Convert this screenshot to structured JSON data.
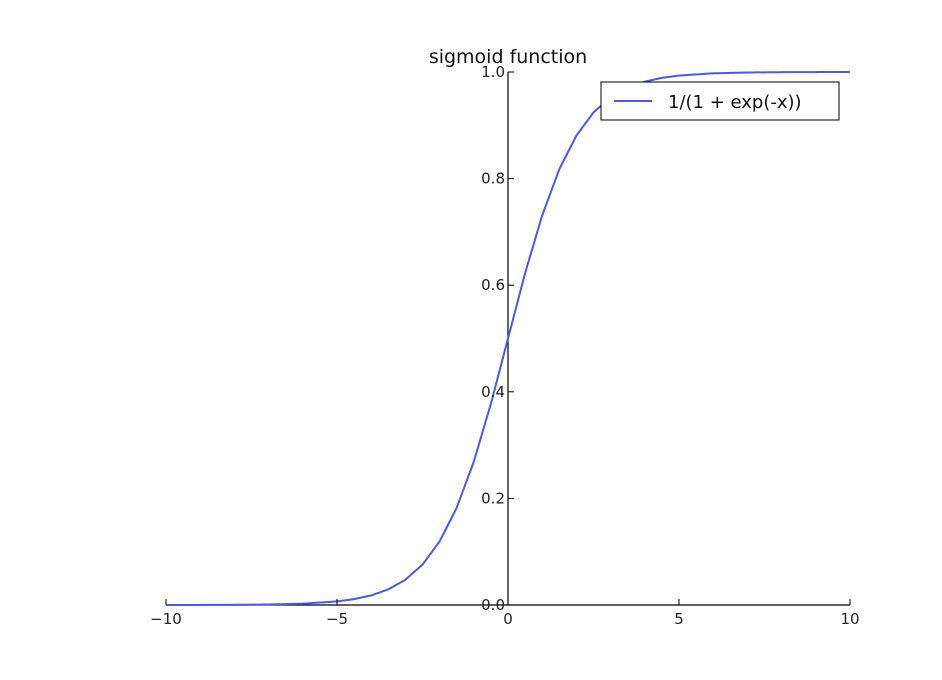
{
  "chart_data": {
    "type": "line",
    "title": "sigmoid function",
    "xlabel": "",
    "ylabel": "",
    "xlim": [
      -10,
      10
    ],
    "ylim": [
      0,
      1
    ],
    "xticks": [
      -10,
      -5,
      0,
      5,
      10
    ],
    "xtick_labels": [
      "−10",
      "−5",
      "0",
      "5",
      "10"
    ],
    "yticks": [
      0,
      0.2,
      0.4,
      0.6,
      0.8,
      1.0
    ],
    "ytick_labels": [
      "0.0",
      "0.2",
      "0.4",
      "0.6",
      "0.8",
      "1.0"
    ],
    "grid": false,
    "legend_position": "top-right",
    "series": [
      {
        "name": "1/(1 + exp(-x))",
        "color": "#4b57f5",
        "x": [
          -10,
          -9,
          -8,
          -7,
          -6,
          -5,
          -4.5,
          -4,
          -3.5,
          -3,
          -2.5,
          -2,
          -1.5,
          -1,
          -0.5,
          0,
          0.5,
          1,
          1.5,
          2,
          2.5,
          3,
          3.5,
          4,
          4.5,
          5,
          6,
          7,
          8,
          9,
          10
        ],
        "y": [
          4.54e-05,
          0.0001234,
          0.0003354,
          0.0009111,
          0.0024726,
          0.0066929,
          0.0109869,
          0.0179862,
          0.0293122,
          0.0474259,
          0.0758582,
          0.1192029,
          0.1824255,
          0.2689414,
          0.3775407,
          0.5,
          0.6224593,
          0.7310586,
          0.8175745,
          0.8807971,
          0.9241418,
          0.9525741,
          0.9706878,
          0.9820138,
          0.9890131,
          0.9933071,
          0.9975274,
          0.9990889,
          0.9996646,
          0.9998766,
          0.9999546
        ]
      }
    ]
  }
}
